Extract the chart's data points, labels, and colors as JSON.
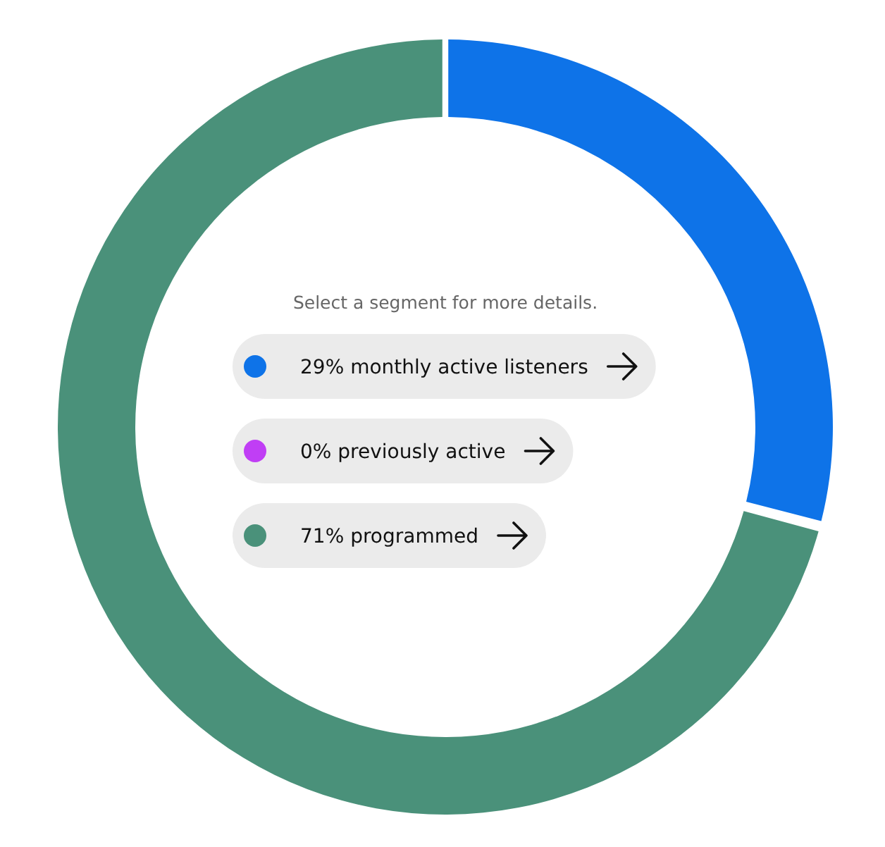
{
  "chart_data": {
    "type": "donut",
    "categories": [
      "monthly active listeners",
      "previously active",
      "programmed"
    ],
    "values": [
      29,
      0,
      71
    ],
    "value_labels": [
      "29%",
      "0%",
      "71%"
    ],
    "colors": [
      "#0e73e8",
      "#c03ef5",
      "#4a917a"
    ],
    "legend": "center",
    "annotations": [
      "Select a segment for more details."
    ]
  }
}
